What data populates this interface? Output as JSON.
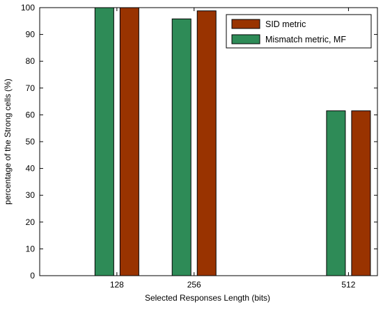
{
  "chart_data": {
    "type": "bar",
    "title": "",
    "xlabel": "Selected Responses Length (bits)",
    "ylabel": "percentage of the Strong cells (%)",
    "x": [
      128,
      256,
      512
    ],
    "x_ticks": [
      "128",
      "256",
      "512"
    ],
    "xlim": [
      0,
      560
    ],
    "ylim": [
      0,
      100
    ],
    "y_ticks": [
      0,
      10,
      20,
      30,
      40,
      50,
      60,
      70,
      80,
      90,
      100
    ],
    "grid": false,
    "legend_position": "top-right",
    "series": [
      {
        "name": "Mismatch metric, MF",
        "color": "#2e8b57",
        "values": [
          100,
          95.8,
          61.5
        ]
      },
      {
        "name": "SID metric",
        "color": "#993300",
        "values": [
          100,
          98.8,
          61.5
        ]
      }
    ],
    "legend_order": [
      1,
      0
    ]
  }
}
